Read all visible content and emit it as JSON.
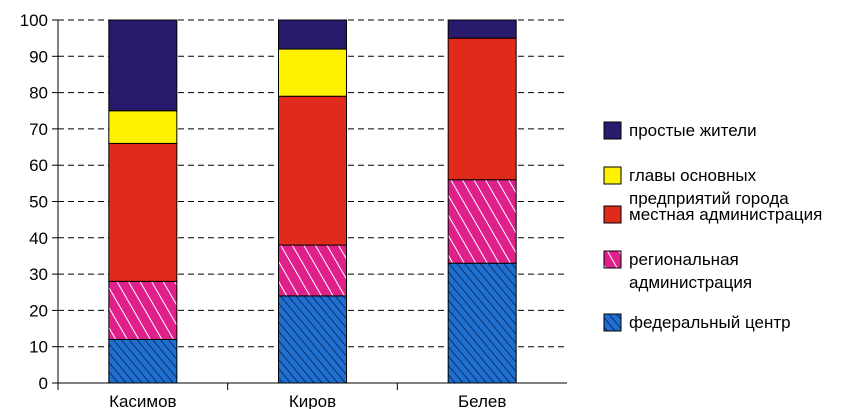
{
  "chart_data": {
    "type": "bar",
    "stacked": true,
    "categories": [
      "Касимов",
      "Киров",
      "Белев"
    ],
    "ylim": [
      0,
      100
    ],
    "yticks": [
      0,
      10,
      20,
      30,
      40,
      50,
      60,
      70,
      80,
      90,
      100
    ],
    "grid": "dashed horizontal",
    "legend_position": "right",
    "series": [
      {
        "name": "федеральный центр",
        "values": [
          12,
          24,
          33
        ],
        "color": "#1f6fd1",
        "pattern": "diagonal-hatch-blue"
      },
      {
        "name": "региональная администрация",
        "values": [
          16,
          14,
          23
        ],
        "color": "#e0208a",
        "pattern": "diagonal-hatch-magenta"
      },
      {
        "name": "местная администрация",
        "values": [
          38,
          41,
          39
        ],
        "color": "#e02a1c",
        "pattern": "solid"
      },
      {
        "name": "главы основных предприятий города",
        "values": [
          9,
          13,
          0
        ],
        "color": "#fff200",
        "pattern": "solid"
      },
      {
        "name": "простые жители",
        "values": [
          25,
          8,
          5
        ],
        "color": "#2a1a6e",
        "pattern": "solid"
      }
    ],
    "legend": [
      {
        "lines": [
          "простые жители"
        ],
        "series": 4
      },
      {
        "lines": [
          "главы основных",
          "предприятий города"
        ],
        "series": 3
      },
      {
        "lines": [
          "местная администрация"
        ],
        "series": 2
      },
      {
        "lines": [
          "региональная",
          "администрация"
        ],
        "series": 1
      },
      {
        "lines": [
          "федеральный центр"
        ],
        "series": 0
      }
    ]
  }
}
